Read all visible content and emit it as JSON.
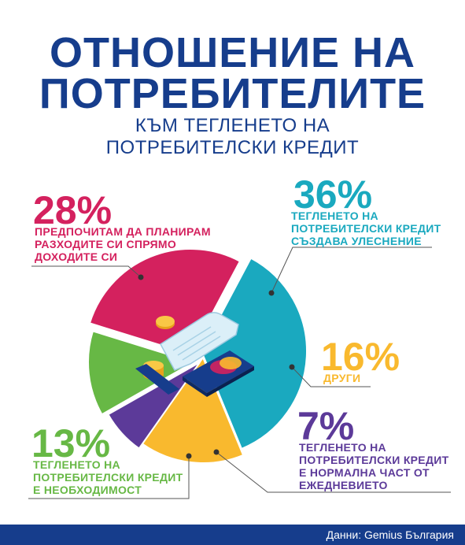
{
  "header": {
    "title_line1": "ОТНОШЕНИЕ НА",
    "title_line2": "ПОТРЕБИТЕЛИТЕ",
    "subtitle": "КЪМ ТЕГЛЕНЕТО НА ПОТРЕБИТЕЛСКИ КРЕДИТ"
  },
  "chart_data": {
    "type": "pie",
    "title": "ОТНОШЕНИЕ НА ПОТРЕБИТЕЛИТЕ КЪМ ТЕГЛЕНЕТО НА ПОТРЕБИТЕЛСКИ КРЕДИТ",
    "slices": [
      {
        "label": "ТЕГЛЕНЕТО НА ПОТРЕБИТЕЛСКИ КРЕДИТ СЪЗДАВА УЛЕСНЕНИЕ",
        "percent_label": "36%",
        "value": 36,
        "color": "#1aa9bf"
      },
      {
        "label": "ДРУГИ",
        "percent_label": "16%",
        "value": 16,
        "color": "#f9b92e"
      },
      {
        "label": "ТЕГЛЕНЕТО НА ПОТРЕБИТЕЛСКИ КРЕДИТ Е НОРМАЛНА ЧАСТ ОТ ЕЖЕДНЕВИЕТО",
        "percent_label": "7%",
        "value": 7,
        "color": "#5c3a99"
      },
      {
        "label": "ТЕГЛЕНЕТО НА ПОТРЕБИТЕЛСКИ КРЕДИТ Е НЕОБХОДИМОСТ",
        "percent_label": "13%",
        "value": 13,
        "color": "#67b845"
      },
      {
        "label": "ПРЕДПОЧИТАМ ДА ПЛАНИРАМ РАЗХОДИТЕ СИ СПРЯМО ДОХОДИТЕ СИ",
        "percent_label": "28%",
        "value": 28,
        "color": "#d4215e"
      }
    ]
  },
  "labels": {
    "teal": {
      "pct": "36%",
      "lines": [
        "ТЕГЛЕНЕТО НА",
        "ПОТРЕБИТЕЛСКИ КРЕДИТ",
        "СЪЗДАВА УЛЕСНЕНИЕ"
      ]
    },
    "yellow": {
      "pct": "16%",
      "lines": [
        "ДРУГИ"
      ]
    },
    "purple": {
      "pct": "7%",
      "lines": [
        "ТЕГЛЕНЕТО НА",
        "ПОТРЕБИТЕЛСКИ КРЕДИТ",
        "Е НОРМАЛНА ЧАСТ ОТ",
        "ЕЖЕДНЕВИЕТО"
      ]
    },
    "green": {
      "pct": "13%",
      "lines": [
        "ТЕГЛЕНЕТО НА",
        "ПОТРЕБИТЕЛСКИ КРЕДИТ",
        "Е НЕОБХОДИМОСТ"
      ]
    },
    "pink": {
      "pct": "28%",
      "lines": [
        "ПРЕДПОЧИТАМ ДА ПЛАНИРАМ",
        "РАЗХОДИТЕ СИ СПРЯМО",
        "ДОХОДИТЕ СИ"
      ]
    }
  },
  "colors": {
    "navy": "#163d8c",
    "teal": "#1aa9bf",
    "yellow": "#f9b92e",
    "purple": "#5c3a99",
    "green": "#67b845",
    "pink": "#d4215e"
  },
  "footer": {
    "source": "Данни: Gemius България"
  },
  "icons": [
    "receipt-icon",
    "credit-card-icon",
    "coin-stack-icon"
  ]
}
